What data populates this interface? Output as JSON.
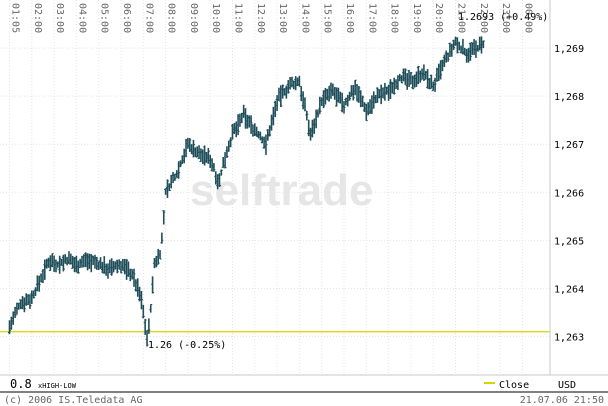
{
  "chart_data": {
    "type": "ohlc",
    "x_tick_labels": [
      "01:05",
      "02:00",
      "03:00",
      "04:00",
      "05:00",
      "06:00",
      "07:00",
      "08:00",
      "09:00",
      "10:00",
      "11:00",
      "12:00",
      "13:00",
      "14:00",
      "15:00",
      "16:00",
      "17:00",
      "18:00",
      "19:00",
      "20:00",
      "21:00",
      "22:00",
      "23:00",
      "00:00"
    ],
    "y_ticks": [
      1.263,
      1.264,
      1.265,
      1.266,
      1.267,
      1.268,
      1.269
    ],
    "y_tick_labels": [
      "1,263",
      "1,264",
      "1,265",
      "1,266",
      "1,267",
      "1,268",
      "1,269"
    ],
    "ylim": [
      1.2622,
      1.27
    ],
    "grid": true,
    "watermark": "selftrade",
    "close_line": {
      "value": 1.2631,
      "color": "#d4d400"
    },
    "bar_color": "#1f4e5a",
    "high_annotation": "1.2693 (+0.49%)",
    "low_annotation": "1.26 (-0.25%)",
    "price_path": [
      [
        0.0,
        1.2632
      ],
      [
        0.5,
        1.2637
      ],
      [
        1.0,
        1.2638
      ],
      [
        1.4,
        1.2642
      ],
      [
        1.8,
        1.2646
      ],
      [
        2.2,
        1.2645
      ],
      [
        2.6,
        1.2646
      ],
      [
        3.0,
        1.2645
      ],
      [
        3.5,
        1.2646
      ],
      [
        4.0,
        1.2645
      ],
      [
        4.5,
        1.2644
      ],
      [
        5.0,
        1.2645
      ],
      [
        5.5,
        1.2643
      ],
      [
        5.9,
        1.2638
      ],
      [
        6.2,
        1.2629
      ],
      [
        6.5,
        1.2645
      ],
      [
        6.8,
        1.2648
      ],
      [
        7.0,
        1.266
      ],
      [
        7.5,
        1.2664
      ],
      [
        8.0,
        1.267
      ],
      [
        8.5,
        1.2668
      ],
      [
        9.0,
        1.2667
      ],
      [
        9.4,
        1.2662
      ],
      [
        9.7,
        1.2668
      ],
      [
        10.0,
        1.2672
      ],
      [
        10.5,
        1.2676
      ],
      [
        11.0,
        1.2673
      ],
      [
        11.5,
        1.267
      ],
      [
        12.0,
        1.2679
      ],
      [
        12.5,
        1.2682
      ],
      [
        13.0,
        1.2683
      ],
      [
        13.5,
        1.2672
      ],
      [
        14.0,
        1.2679
      ],
      [
        14.5,
        1.2681
      ],
      [
        15.0,
        1.2678
      ],
      [
        15.5,
        1.2682
      ],
      [
        16.0,
        1.2677
      ],
      [
        16.5,
        1.268
      ],
      [
        17.0,
        1.2681
      ],
      [
        17.5,
        1.2684
      ],
      [
        18.0,
        1.2683
      ],
      [
        18.5,
        1.2685
      ],
      [
        19.0,
        1.2682
      ],
      [
        19.5,
        1.2687
      ],
      [
        20.0,
        1.2691
      ],
      [
        20.5,
        1.2689
      ],
      [
        21.0,
        1.269
      ],
      [
        21.3,
        1.2691
      ]
    ]
  },
  "bottom_bar": {
    "zoom": "0.8",
    "mode": "xHIGH-LOW",
    "legend_close": "Close",
    "currency": "USD"
  },
  "footer": {
    "copyright": "(c) 2006 IS.Teledata AG",
    "timestamp": "21.07.06 21:50"
  }
}
